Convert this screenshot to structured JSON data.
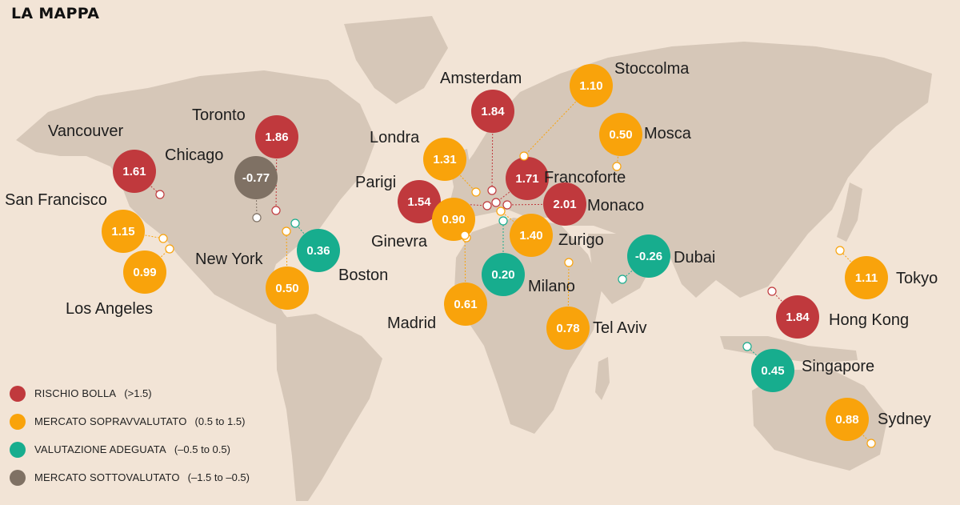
{
  "title": "LA MAPPA",
  "colors": {
    "background": "#f2e4d6",
    "land": "#d6c7b8",
    "rischio_bolla": "#c0393d",
    "sopravvalutato": "#f9a30b",
    "adeguata": "#17ad8e",
    "sottovalutato": "#7f7164"
  },
  "legend": [
    {
      "category": "rischio_bolla",
      "label": "RISCHIO BOLLA",
      "range": "(>1.5)"
    },
    {
      "category": "sopravvalutato",
      "label": "MERCATO SOPRAVVALUTATO",
      "range": "(0.5 to 1.5)"
    },
    {
      "category": "adeguata",
      "label": "VALUTAZIONE ADEGUATA",
      "range": "(–0.5 to 0.5)"
    },
    {
      "category": "sottovalutato",
      "label": "MERCATO SOTTOVALUTATO",
      "range": "(–1.5 to –0.5)"
    }
  ],
  "cities": [
    {
      "key": "vancouver",
      "name": "Vancouver",
      "value": "1.61",
      "category": "rischio_bolla"
    },
    {
      "key": "san-francisco",
      "name": "San Francisco",
      "value": "1.15",
      "category": "sopravvalutato"
    },
    {
      "key": "los-angeles",
      "name": "Los Angeles",
      "value": "0.99",
      "category": "sopravvalutato"
    },
    {
      "key": "toronto",
      "name": "Toronto",
      "value": "1.86",
      "category": "rischio_bolla"
    },
    {
      "key": "chicago",
      "name": "Chicago",
      "value": "-0.77",
      "category": "sottovalutato"
    },
    {
      "key": "new-york",
      "name": "New York",
      "value": "0.50",
      "category": "sopravvalutato"
    },
    {
      "key": "boston",
      "name": "Boston",
      "value": "0.36",
      "category": "adeguata"
    },
    {
      "key": "londra",
      "name": "Londra",
      "value": "1.31",
      "category": "sopravvalutato"
    },
    {
      "key": "parigi",
      "name": "Parigi",
      "value": "1.54",
      "category": "rischio_bolla"
    },
    {
      "key": "amsterdam",
      "name": "Amsterdam",
      "value": "1.84",
      "category": "rischio_bolla"
    },
    {
      "key": "ginevra",
      "name": "Ginevra",
      "value": "0.90",
      "category": "sopravvalutato"
    },
    {
      "key": "madrid",
      "name": "Madrid",
      "value": "0.61",
      "category": "sopravvalutato"
    },
    {
      "key": "francoforte",
      "name": "Francoforte",
      "value": "1.71",
      "category": "rischio_bolla"
    },
    {
      "key": "monaco",
      "name": "Monaco",
      "value": "2.01",
      "category": "rischio_bolla"
    },
    {
      "key": "zurigo",
      "name": "Zurigo",
      "value": "1.40",
      "category": "sopravvalutato"
    },
    {
      "key": "milano",
      "name": "Milano",
      "value": "0.20",
      "category": "adeguata"
    },
    {
      "key": "stoccolma",
      "name": "Stoccolma",
      "value": "1.10",
      "category": "sopravvalutato"
    },
    {
      "key": "mosca",
      "name": "Mosca",
      "value": "0.50",
      "category": "sopravvalutato"
    },
    {
      "key": "tel-aviv",
      "name": "Tel Aviv",
      "value": "0.78",
      "category": "sopravvalutato"
    },
    {
      "key": "dubai",
      "name": "Dubai",
      "value": "-0.26",
      "category": "adeguata"
    },
    {
      "key": "tokyo",
      "name": "Tokyo",
      "value": "1.11",
      "category": "sopravvalutato"
    },
    {
      "key": "hong-kong",
      "name": "Hong Kong",
      "value": "1.84",
      "category": "rischio_bolla"
    },
    {
      "key": "singapore",
      "name": "Singapore",
      "value": "0.45",
      "category": "adeguata"
    },
    {
      "key": "sydney",
      "name": "Sydney",
      "value": "0.88",
      "category": "sopravvalutato"
    }
  ]
}
